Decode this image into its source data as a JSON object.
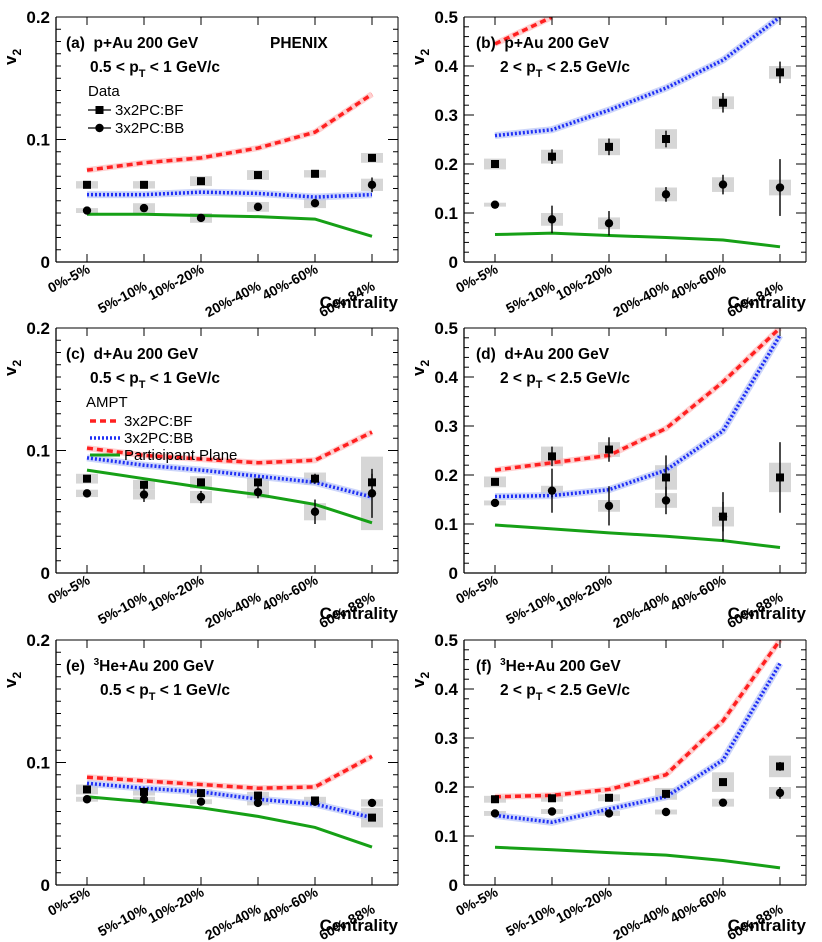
{
  "figure": {
    "brand": "PHENIX",
    "xlabel": "Centrality",
    "ylabel": "v",
    "ylabel_sub": "2",
    "legend_data_header": "Data",
    "legend_data_bf": "3x2PC:BF",
    "legend_data_bb": "3x2PC:BB",
    "legend_ampt_header": "AMPT",
    "legend_ampt_bf": "3x2PC:BF",
    "legend_ampt_bb": "3x2PC:BB",
    "legend_ampt_pp": "Participant Plane",
    "colors": {
      "bf": "#ff2020",
      "bb": "#1f2ff5",
      "pp": "#16a016",
      "sys": "#d6d6d6",
      "band_bb": "#b8c4f8",
      "band_bf": "#ffb0b0"
    }
  },
  "chart_data": [
    {
      "id": "a",
      "type": "scatter+line",
      "title": "(a)  p+Au 200 GeV",
      "subtitle": "0.5 < p",
      "subtitle_sub": "T",
      "subtitle_rest": " < 1 GeV/c",
      "categories": [
        "0%-5%",
        "5%-10%",
        "10%-20%",
        "20%-40%",
        "40%-60%",
        "60%-84%"
      ],
      "ylim": [
        0,
        0.2
      ],
      "yticks": [
        "0",
        "0.1",
        "0.2"
      ],
      "ytick_values": [
        0,
        0.1,
        0.2
      ],
      "xlabel": "Centrality",
      "data_bf": {
        "values": [
          0.063,
          0.063,
          0.066,
          0.071,
          0.072,
          0.085
        ],
        "err": [
          0.002,
          0.002,
          0.002,
          0.002,
          0.002,
          0.003
        ],
        "sys": [
          0.003,
          0.003,
          0.004,
          0.004,
          0.003,
          0.004
        ]
      },
      "data_bb": {
        "values": [
          0.042,
          0.044,
          0.036,
          0.045,
          0.048,
          0.063
        ],
        "err": [
          0.002,
          0.002,
          0.002,
          0.002,
          0.003,
          0.006
        ],
        "sys": [
          0.002,
          0.004,
          0.004,
          0.004,
          0.004,
          0.005
        ]
      },
      "ampt_bf": [
        0.075,
        0.081,
        0.085,
        0.093,
        0.106,
        0.137
      ],
      "ampt_bb": [
        0.055,
        0.055,
        0.057,
        0.056,
        0.053,
        0.055
      ],
      "ampt_pp": [
        0.039,
        0.039,
        0.038,
        0.037,
        0.035,
        0.021
      ]
    },
    {
      "id": "b",
      "type": "scatter+line",
      "title": "(b)  p+Au 200 GeV",
      "subtitle": "2 < p",
      "subtitle_sub": "T",
      "subtitle_rest": " < 2.5 GeV/c",
      "categories": [
        "0%-5%",
        "5%-10%",
        "10%-20%",
        "20%-40%",
        "40%-60%",
        "60%-84%"
      ],
      "ylim": [
        0,
        0.5
      ],
      "yticks": [
        "0",
        "0.1",
        "0.2",
        "0.3",
        "0.4",
        "0.5"
      ],
      "ytick_values": [
        0,
        0.1,
        0.2,
        0.3,
        0.4,
        0.5
      ],
      "xlabel": "Centrality",
      "data_bf": {
        "values": [
          0.2,
          0.215,
          0.235,
          0.251,
          0.325,
          0.387
        ],
        "err": [
          0.006,
          0.015,
          0.017,
          0.017,
          0.02,
          0.022
        ],
        "sys": [
          0.011,
          0.014,
          0.017,
          0.02,
          0.013,
          0.013
        ]
      },
      "data_bb": {
        "values": [
          0.117,
          0.087,
          0.079,
          0.138,
          0.158,
          0.152
        ],
        "err": [
          0.006,
          0.028,
          0.025,
          0.015,
          0.02,
          0.058
        ],
        "sys": [
          0.004,
          0.013,
          0.012,
          0.014,
          0.015,
          0.016
        ]
      },
      "ampt_bf": [
        0.445,
        0.5,
        null,
        null,
        null,
        null
      ],
      "ampt_bb": [
        0.258,
        0.27,
        0.31,
        0.355,
        0.412,
        0.5
      ],
      "ampt_pp": [
        0.056,
        0.059,
        0.054,
        0.05,
        0.045,
        0.031
      ]
    },
    {
      "id": "c",
      "type": "scatter+line",
      "title": "(c)  d+Au 200 GeV",
      "subtitle": "0.5 < p",
      "subtitle_sub": "T",
      "subtitle_rest": " < 1 GeV/c",
      "categories": [
        "0%-5%",
        "5%-10%",
        "10%-20%",
        "20%-40%",
        "40%-60%",
        "60%-88%"
      ],
      "ylim": [
        0,
        0.2
      ],
      "yticks": [
        "0",
        "0.1",
        "0.2"
      ],
      "ytick_values": [
        0,
        0.1,
        0.2
      ],
      "xlabel": "Centrality",
      "data_bf": {
        "values": [
          0.077,
          0.072,
          0.074,
          0.074,
          0.077,
          0.074
        ],
        "err": [
          0.002,
          0.003,
          0.003,
          0.003,
          0.004,
          0.007
        ],
        "sys": [
          0.004,
          0.004,
          0.005,
          0.004,
          0.005,
          0.01
        ]
      },
      "data_bb": {
        "values": [
          0.065,
          0.064,
          0.062,
          0.066,
          0.05,
          0.065
        ],
        "err": [
          0.002,
          0.006,
          0.005,
          0.005,
          0.01,
          0.02
        ],
        "sys": [
          0.003,
          0.004,
          0.005,
          0.005,
          0.007,
          0.03
        ]
      },
      "ampt_bf": [
        0.102,
        0.096,
        0.093,
        0.09,
        0.092,
        0.115
      ],
      "ampt_bb": [
        0.094,
        0.088,
        0.084,
        0.079,
        0.074,
        0.062
      ],
      "ampt_pp": [
        0.084,
        0.077,
        0.07,
        0.064,
        0.056,
        0.041
      ]
    },
    {
      "id": "d",
      "type": "scatter+line",
      "title": "(d)  d+Au 200 GeV",
      "subtitle": "2 < p",
      "subtitle_sub": "T",
      "subtitle_rest": " < 2.5 GeV/c",
      "categories": [
        "0%-5%",
        "5%-10%",
        "10%-20%",
        "20%-40%",
        "40%-60%",
        "60%-88%"
      ],
      "ylim": [
        0,
        0.5
      ],
      "yticks": [
        "0",
        "0.1",
        "0.2",
        "0.3",
        "0.4",
        "0.5"
      ],
      "ytick_values": [
        0,
        0.1,
        0.2,
        0.3,
        0.4,
        0.5
      ],
      "xlabel": "Centrality",
      "data_bf": {
        "values": [
          0.186,
          0.238,
          0.252,
          0.195,
          0.115,
          0.195
        ],
        "err": [
          0.007,
          0.02,
          0.025,
          0.045,
          0.05,
          0.072
        ],
        "sys": [
          0.011,
          0.02,
          0.015,
          0.025,
          0.02,
          0.03
        ]
      },
      "data_bb": {
        "values": [
          0.143,
          0.168,
          0.137,
          0.148,
          0.115,
          null
        ],
        "err": [
          0.007,
          0.045,
          0.04,
          0.028,
          0.03,
          0
        ],
        "sys": [
          0.005,
          0.01,
          0.012,
          0.015,
          0.015,
          0
        ]
      },
      "ampt_bf": [
        0.21,
        0.225,
        0.24,
        0.295,
        0.39,
        0.5
      ],
      "ampt_bb": [
        0.156,
        0.158,
        0.17,
        0.21,
        0.29,
        0.485
      ],
      "ampt_pp": [
        0.098,
        0.09,
        0.082,
        0.075,
        0.066,
        0.052
      ]
    },
    {
      "id": "e",
      "type": "scatter+line",
      "title": "(e)  ",
      "title_sup": "3",
      "title_rest": "He+Au 200 GeV",
      "subtitle": "0.5 < p",
      "subtitle_sub": "T",
      "subtitle_rest": " < 1 GeV/c",
      "categories": [
        "0%-5%",
        "5%-10%",
        "10%-20%",
        "20%-40%",
        "40%-60%",
        "60%-88%"
      ],
      "ylim": [
        0,
        0.2
      ],
      "yticks": [
        "0",
        "0.1",
        "0.2"
      ],
      "ytick_values": [
        0,
        0.1,
        0.2
      ],
      "xlabel": "Centrality",
      "data_bf": {
        "values": [
          0.078,
          0.076,
          0.075,
          0.073,
          0.069,
          0.055
        ],
        "err": [
          0.002,
          0.002,
          0.002,
          0.002,
          0.002,
          0.003
        ],
        "sys": [
          0.004,
          0.003,
          0.003,
          0.003,
          0.003,
          0.008
        ]
      },
      "data_bb": {
        "values": [
          0.07,
          0.07,
          0.068,
          0.067,
          0.068,
          0.067
        ],
        "err": [
          0.002,
          0.002,
          0.002,
          0.002,
          0.002,
          0.003
        ],
        "sys": [
          0.002,
          0.002,
          0.002,
          0.002,
          0.002,
          0.003
        ]
      },
      "ampt_bf": [
        0.088,
        0.085,
        0.082,
        0.079,
        0.08,
        0.105
      ],
      "ampt_bb": [
        0.083,
        0.079,
        0.076,
        0.07,
        0.066,
        0.055
      ],
      "ampt_pp": [
        0.072,
        0.068,
        0.063,
        0.056,
        0.047,
        0.031
      ]
    },
    {
      "id": "f",
      "type": "scatter+line",
      "title": "(f)  ",
      "title_sup": "3",
      "title_rest": "He+Au 200 GeV",
      "subtitle": "2 < p",
      "subtitle_sub": "T",
      "subtitle_rest": " < 2.5 GeV/c",
      "categories": [
        "0%-5%",
        "5%-10%",
        "10%-20%",
        "20%-40%",
        "40%-60%",
        "60%-88%"
      ],
      "ylim": [
        0,
        0.5
      ],
      "yticks": [
        "0",
        "0.1",
        "0.2",
        "0.3",
        "0.4",
        "0.5"
      ],
      "ytick_values": [
        0,
        0.1,
        0.2,
        0.3,
        0.4,
        0.5
      ],
      "xlabel": "Centrality",
      "data_bf": {
        "values": [
          0.175,
          0.177,
          0.178,
          0.186,
          0.21,
          0.242
        ],
        "err": [
          0.004,
          0.005,
          0.005,
          0.006,
          0.007,
          0.009
        ],
        "sys": [
          0.007,
          0.007,
          0.007,
          0.012,
          0.02,
          0.022
        ]
      },
      "data_bb": {
        "values": [
          0.146,
          0.15,
          0.146,
          0.149,
          0.168,
          0.188
        ],
        "err": [
          0.004,
          0.005,
          0.005,
          0.005,
          0.007,
          0.012
        ],
        "sys": [
          0.005,
          0.005,
          0.005,
          0.005,
          0.008,
          0.012
        ]
      },
      "ampt_bf": [
        0.18,
        0.183,
        0.195,
        0.225,
        0.335,
        0.5
      ],
      "ampt_bb": [
        0.142,
        0.128,
        0.155,
        0.18,
        0.255,
        0.452
      ],
      "ampt_pp": [
        0.077,
        0.072,
        0.066,
        0.061,
        0.05,
        0.035
      ]
    }
  ]
}
